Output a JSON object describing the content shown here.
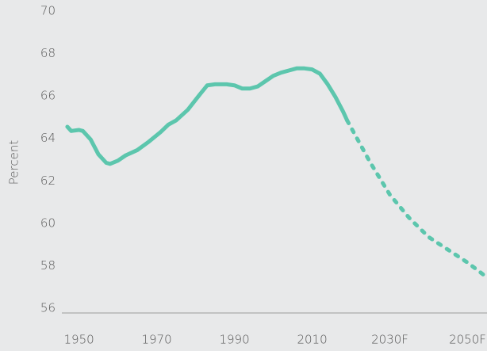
{
  "chart_data": {
    "type": "line",
    "y_label": "Percent",
    "xlim": [
      1946,
      2055
    ],
    "ylim": [
      56,
      70
    ],
    "xticks": [
      1950,
      1970,
      1990,
      2010,
      {
        "value": 2030,
        "label": "2030F"
      },
      {
        "value": 2050,
        "label": "2050F"
      }
    ],
    "yticks": [
      56,
      58,
      60,
      62,
      64,
      66,
      68,
      70
    ],
    "series": [
      {
        "color": "#5cc6ad",
        "dashed": false,
        "x": [
          1947,
          1948,
          1950,
          1951,
          1953,
          1955,
          1957,
          1958,
          1960,
          1962,
          1965,
          1968,
          1971,
          1973,
          1975,
          1978,
          1981,
          1983,
          1985,
          1988,
          1990,
          1992,
          1994,
          1996,
          1998,
          2000,
          2002,
          2004,
          2006,
          2008,
          2010,
          2012,
          2014,
          2016,
          2018,
          2019
        ],
        "values": [
          64.7,
          64.5,
          64.55,
          64.5,
          64.1,
          63.4,
          63.0,
          62.95,
          63.1,
          63.35,
          63.6,
          64.0,
          64.45,
          64.8,
          65.0,
          65.5,
          66.2,
          66.65,
          66.7,
          66.7,
          66.65,
          66.5,
          66.5,
          66.6,
          66.85,
          67.1,
          67.25,
          67.35,
          67.45,
          67.45,
          67.4,
          67.2,
          66.7,
          66.1,
          65.4,
          65.0
        ]
      },
      {
        "color": "#5cc6ad",
        "dashed": true,
        "x": [
          2019,
          2025,
          2030,
          2035,
          2040,
          2050,
          2055
        ],
        "values": [
          65.0,
          63.0,
          61.5,
          60.4,
          59.5,
          58.3,
          57.6
        ]
      }
    ]
  }
}
